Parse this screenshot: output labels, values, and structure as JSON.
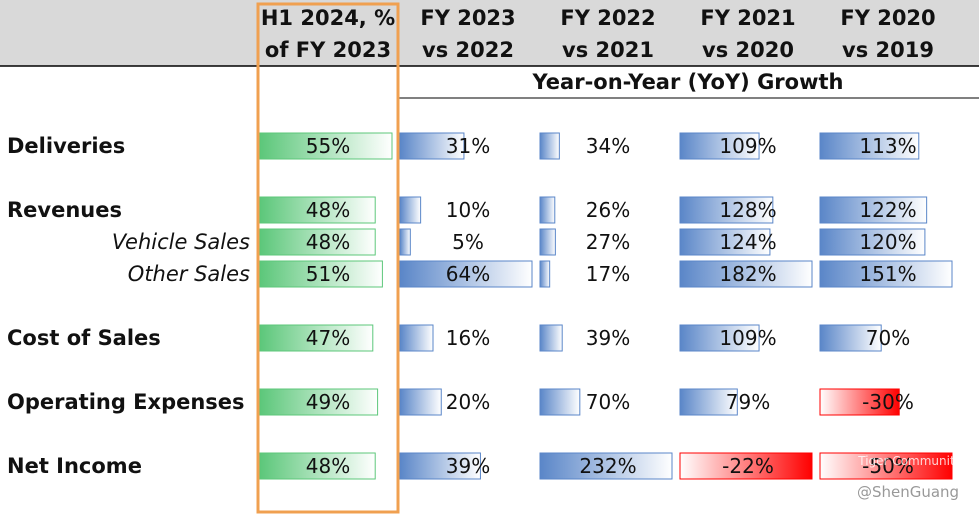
{
  "header": {
    "columns": [
      [
        "H1 2024, %",
        "of FY 2023"
      ],
      [
        "FY 2023",
        "vs 2022"
      ],
      [
        "FY 2022",
        "vs 2021"
      ],
      [
        "FY 2021",
        "vs 2020"
      ],
      [
        "FY 2020",
        "vs 2019"
      ]
    ],
    "group_title": "Year-on-Year (YoY) Growth"
  },
  "rows": [
    {
      "label": "Deliveries",
      "sub": false,
      "cells": [
        {
          "value": 55,
          "label": "55%"
        },
        {
          "value": 31,
          "label": "31%"
        },
        {
          "value": 34,
          "label": "34%"
        },
        {
          "value": 109,
          "label": "109%"
        },
        {
          "value": 113,
          "label": "113%"
        }
      ]
    },
    {
      "label": "Revenues",
      "sub": false,
      "cells": [
        {
          "value": 48,
          "label": "48%"
        },
        {
          "value": 10,
          "label": "10%"
        },
        {
          "value": 26,
          "label": "26%"
        },
        {
          "value": 128,
          "label": "128%"
        },
        {
          "value": 122,
          "label": "122%"
        }
      ]
    },
    {
      "label": "Vehicle Sales",
      "sub": true,
      "cells": [
        {
          "value": 48,
          "label": "48%"
        },
        {
          "value": 5,
          "label": "5%"
        },
        {
          "value": 27,
          "label": "27%"
        },
        {
          "value": 124,
          "label": "124%"
        },
        {
          "value": 120,
          "label": "120%"
        }
      ]
    },
    {
      "label": "Other Sales",
      "sub": true,
      "cells": [
        {
          "value": 51,
          "label": "51%"
        },
        {
          "value": 64,
          "label": "64%"
        },
        {
          "value": 17,
          "label": "17%"
        },
        {
          "value": 182,
          "label": "182%"
        },
        {
          "value": 151,
          "label": "151%"
        }
      ]
    },
    {
      "label": "Cost of Sales",
      "sub": false,
      "cells": [
        {
          "value": 47,
          "label": "47%"
        },
        {
          "value": 16,
          "label": "16%"
        },
        {
          "value": 39,
          "label": "39%"
        },
        {
          "value": 109,
          "label": "109%"
        },
        {
          "value": 70,
          "label": "70%"
        }
      ]
    },
    {
      "label": "Operating Expenses",
      "sub": false,
      "cells": [
        {
          "value": 49,
          "label": "49%"
        },
        {
          "value": 20,
          "label": "20%"
        },
        {
          "value": 70,
          "label": "70%"
        },
        {
          "value": 79,
          "label": "79%"
        },
        {
          "value": -30,
          "label": "-30%"
        }
      ]
    },
    {
      "label": "Net Income",
      "sub": false,
      "cells": [
        {
          "value": 48,
          "label": "48%"
        },
        {
          "value": 39,
          "label": "39%"
        },
        {
          "value": 232,
          "label": "232%"
        },
        {
          "value": -22,
          "label": "-22%"
        },
        {
          "value": -50,
          "label": "-50%"
        }
      ]
    }
  ],
  "watermark": {
    "brand": "Tiger Community",
    "author": "@ShenGuang"
  }
}
